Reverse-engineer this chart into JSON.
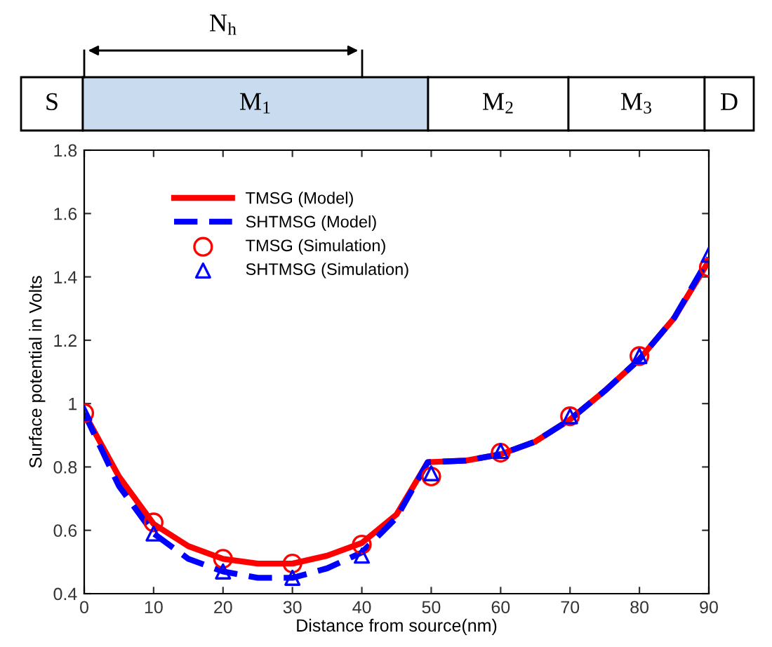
{
  "chart_data": {
    "type": "line",
    "xlabel": "Distance from source(nm)",
    "ylabel": "Surface potential in Volts",
    "annotations": [
      "S",
      "M$_{1}$",
      "M$_{2}$",
      "M$_{3}$",
      "D",
      "N$_{h}$"
    ],
    "xlim": [
      0,
      90
    ],
    "ylim": [
      0.4,
      1.8
    ],
    "xticks": [
      0,
      10,
      20,
      30,
      40,
      50,
      60,
      70,
      80,
      90
    ],
    "yticks": [
      0.4,
      0.6,
      0.8,
      {
        "value": 1,
        "label": "1"
      },
      1.2,
      1.4,
      1.6,
      1.8
    ],
    "grid": false,
    "legend": "top left",
    "series": [
      {
        "name": "TMSG (Model)",
        "color": "#ff0000",
        "line_style": "solid",
        "marker": "none",
        "x": [
          0,
          5,
          10,
          15,
          20,
          25,
          30,
          35,
          40,
          45,
          49.5,
          55,
          60,
          65,
          70,
          75,
          80,
          85,
          90
        ],
        "values": [
          0.97,
          0.77,
          0.62,
          0.55,
          0.51,
          0.495,
          0.495,
          0.52,
          0.56,
          0.65,
          0.815,
          0.82,
          0.84,
          0.88,
          0.95,
          1.04,
          1.14,
          1.27,
          1.45
        ]
      },
      {
        "name": "SHTMSG (Model)",
        "color": "#0000ff",
        "line_style": "dashed",
        "marker": "none",
        "x": [
          0,
          5,
          10,
          15,
          20,
          25,
          30,
          35,
          40,
          45,
          49.5,
          55,
          60,
          65,
          70,
          75,
          80,
          85,
          90
        ],
        "values": [
          0.97,
          0.74,
          0.59,
          0.51,
          0.47,
          0.45,
          0.45,
          0.48,
          0.53,
          0.64,
          0.815,
          0.82,
          0.84,
          0.88,
          0.95,
          1.04,
          1.14,
          1.27,
          1.46
        ]
      },
      {
        "name": "TMSG (Simulation)",
        "type": "scatter",
        "color": "#ff0000",
        "marker": "circle",
        "x": [
          0,
          10,
          20,
          30,
          40,
          50,
          60,
          70,
          80,
          90
        ],
        "values": [
          0.97,
          0.625,
          0.51,
          0.495,
          0.555,
          0.77,
          0.845,
          0.96,
          1.15,
          1.43
        ]
      },
      {
        "name": "SHTMSG (Simulation)",
        "type": "scatter",
        "color": "#0000ff",
        "marker": "triangle",
        "x": [
          0,
          10,
          20,
          30,
          40,
          50,
          60,
          70,
          80,
          90
        ],
        "values": [
          0.97,
          0.59,
          0.47,
          0.45,
          0.52,
          0.78,
          0.85,
          0.96,
          1.15,
          1.47
        ]
      }
    ]
  }
}
